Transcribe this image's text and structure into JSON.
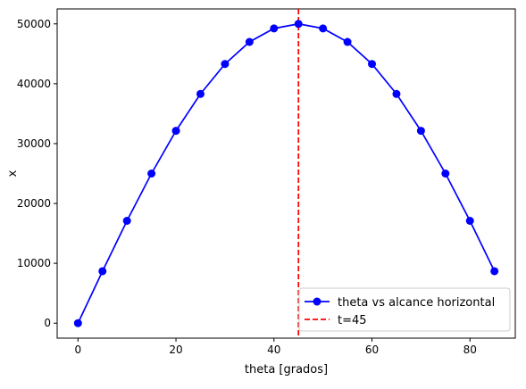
{
  "chart_data": {
    "type": "line",
    "xlabel": "theta [grados]",
    "ylabel": "x",
    "xlim": [
      -4.25,
      89.25
    ],
    "ylim": [
      -2500,
      52500
    ],
    "xticks": [
      0,
      20,
      40,
      60,
      80
    ],
    "yticks": [
      0,
      10000,
      20000,
      30000,
      40000,
      50000
    ],
    "series": [
      {
        "name": "theta vs alcance horizontal",
        "color": "#0000ff",
        "marker": "circle",
        "x": [
          0,
          5,
          10,
          15,
          20,
          25,
          30,
          35,
          40,
          45,
          50,
          55,
          60,
          65,
          70,
          75,
          80,
          85
        ],
        "y": [
          0,
          8682,
          17101,
          25000,
          32139,
          38302,
          43301,
          46985,
          49240,
          50000,
          49240,
          46985,
          43301,
          38302,
          32139,
          25000,
          17101,
          8682
        ]
      }
    ],
    "vlines": [
      {
        "name": "t=45",
        "x": 45,
        "color": "#ff0000",
        "style": "dashed"
      }
    ],
    "legend_position": "lower-right",
    "grid": false
  }
}
